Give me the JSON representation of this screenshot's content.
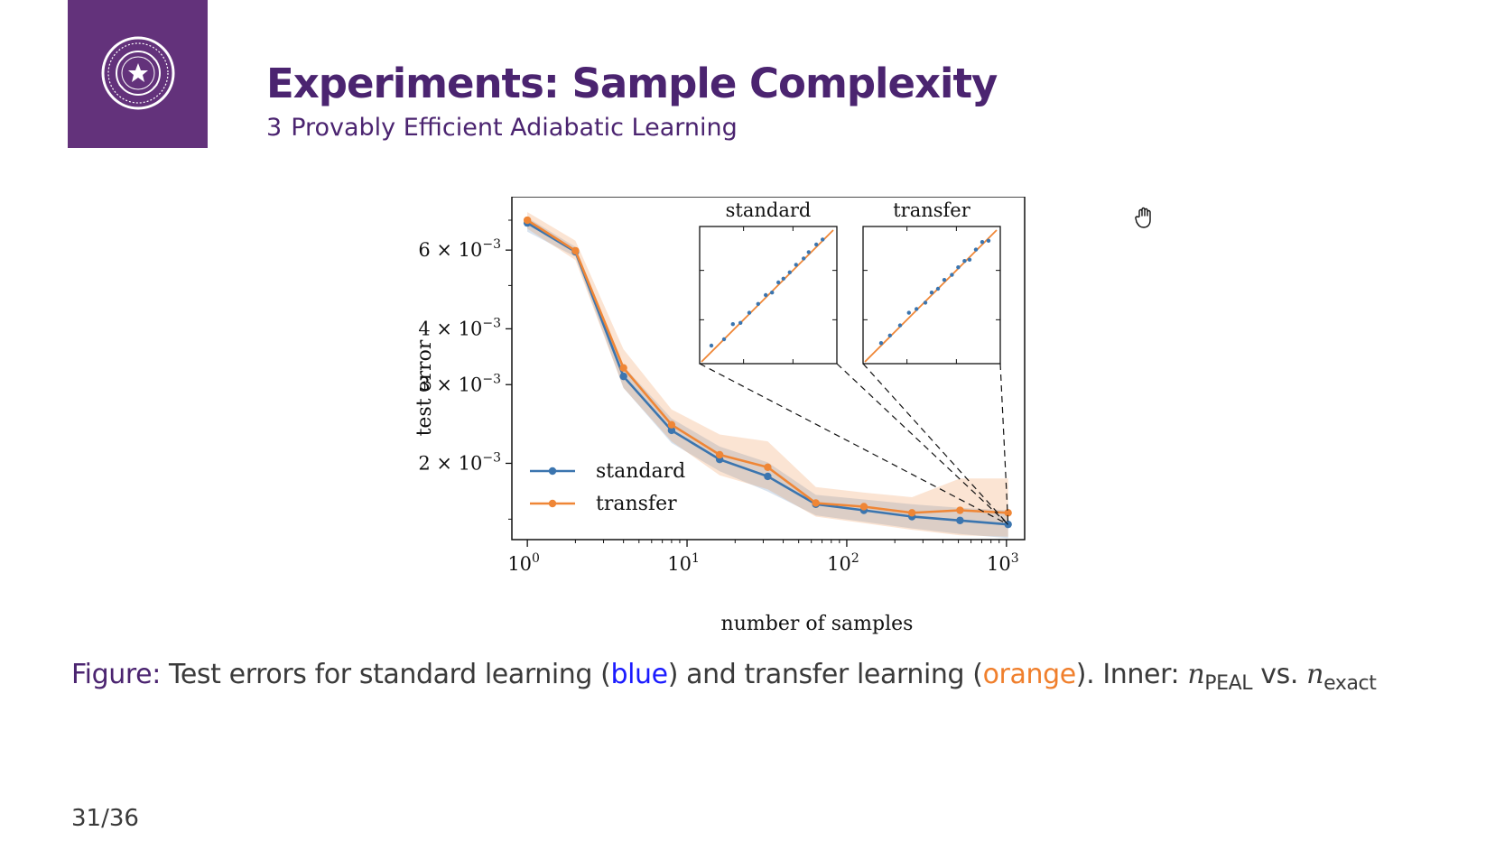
{
  "slide": {
    "title": "Experiments: Sample Complexity",
    "section_number": "3",
    "section_title": "Provably Efficient Adiabatic Learning",
    "page": "31/36"
  },
  "caption": {
    "label": "Figure:",
    "part1": "Test errors for standard learning (",
    "blue_word": "blue",
    "part2": ") and transfer learning (",
    "orange_word": "orange",
    "part3": "). Inner:",
    "n1": "n",
    "n1_sub": "PEAL",
    "vs": "vs.",
    "n2": "n",
    "n2_sub": "exact"
  },
  "colors": {
    "brand_purple": "#63327b",
    "standard": "#3b75af",
    "transfer": "#ef8636"
  },
  "chart_data": {
    "type": "line",
    "xlabel": "number of samples",
    "ylabel": "test error",
    "xscale": "log",
    "yscale": "log",
    "xlim": [
      0.8,
      1300
    ],
    "ylim": [
      0.00135,
      0.0079
    ],
    "x_ticks": [
      {
        "v": 1,
        "base": "10",
        "exp": "0"
      },
      {
        "v": 10,
        "base": "10",
        "exp": "1"
      },
      {
        "v": 100,
        "base": "10",
        "exp": "2"
      },
      {
        "v": 1000,
        "base": "10",
        "exp": "3"
      }
    ],
    "y_ticks": [
      {
        "v": 0.006,
        "mant": "6 × 10",
        "exp": "−3"
      },
      {
        "v": 0.004,
        "mant": "4 × 10",
        "exp": "−3"
      },
      {
        "v": 0.003,
        "mant": "3 × 10",
        "exp": "−3"
      },
      {
        "v": 0.002,
        "mant": "2 × 10",
        "exp": "−3"
      }
    ],
    "x": [
      1,
      2,
      4,
      8,
      16,
      32,
      64,
      128,
      256,
      512,
      1024
    ],
    "series": [
      {
        "name": "standard",
        "color": "#3b75af",
        "values": [
          0.0069,
          0.00595,
          0.00313,
          0.00237,
          0.00204,
          0.00187,
          0.00162,
          0.00157,
          0.00152,
          0.00149,
          0.00146
        ],
        "band_low": [
          0.0066,
          0.0058,
          0.00295,
          0.00222,
          0.00192,
          0.00173,
          0.00153,
          0.00148,
          0.00143,
          0.00139,
          0.00136
        ],
        "band_high": [
          0.0071,
          0.0061,
          0.0033,
          0.00252,
          0.00218,
          0.00201,
          0.0017,
          0.00166,
          0.00162,
          0.00159,
          0.00157
        ]
      },
      {
        "name": "transfer",
        "color": "#ef8636",
        "values": [
          0.007,
          0.00598,
          0.00327,
          0.00244,
          0.00209,
          0.00196,
          0.00163,
          0.0016,
          0.00155,
          0.00157,
          0.00155
        ],
        "band_low": [
          0.0067,
          0.0057,
          0.00295,
          0.00224,
          0.00188,
          0.00175,
          0.00152,
          0.00147,
          0.00142,
          0.00138,
          0.00137
        ],
        "band_high": [
          0.0073,
          0.0063,
          0.0036,
          0.00264,
          0.00232,
          0.00224,
          0.00177,
          0.00172,
          0.00168,
          0.00185,
          0.00185
        ]
      }
    ],
    "legend": {
      "position": "bottom-left"
    },
    "insets": [
      {
        "title": "standard",
        "type": "scatter",
        "series": [
          {
            "name": "fit",
            "color": "#ef8636",
            "x": [
              0,
              1
            ],
            "y": [
              0,
              1
            ]
          },
          {
            "name": "data",
            "color": "#3b75af",
            "x": [
              0.05,
              0.15,
              0.22,
              0.28,
              0.35,
              0.42,
              0.48,
              0.53,
              0.58,
              0.62,
              0.67,
              0.72,
              0.78,
              0.82,
              0.88,
              0.93
            ],
            "y": [
              0.1,
              0.15,
              0.27,
              0.28,
              0.36,
              0.43,
              0.5,
              0.52,
              0.6,
              0.63,
              0.68,
              0.74,
              0.79,
              0.84,
              0.9,
              0.94
            ]
          }
        ]
      },
      {
        "title": "transfer",
        "type": "scatter",
        "series": [
          {
            "name": "fit",
            "color": "#ef8636",
            "x": [
              0,
              1
            ],
            "y": [
              0,
              1
            ]
          },
          {
            "name": "data",
            "color": "#3b75af",
            "x": [
              0.1,
              0.17,
              0.25,
              0.32,
              0.38,
              0.45,
              0.5,
              0.55,
              0.6,
              0.66,
              0.71,
              0.76,
              0.8,
              0.85,
              0.9,
              0.95
            ],
            "y": [
              0.12,
              0.18,
              0.26,
              0.36,
              0.39,
              0.44,
              0.52,
              0.55,
              0.62,
              0.66,
              0.72,
              0.77,
              0.78,
              0.86,
              0.92,
              0.93
            ]
          }
        ]
      }
    ]
  }
}
